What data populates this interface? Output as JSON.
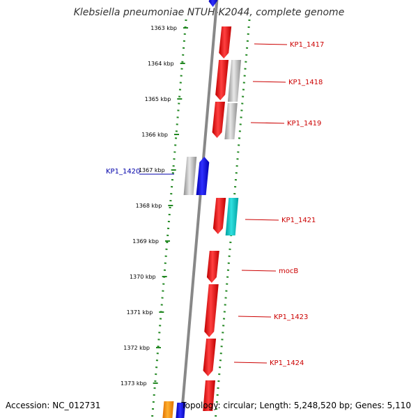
{
  "title": "Klebsiella pneumoniae NTUH-K2044, complete genome",
  "footer": {
    "accession": "Accession: NC_012731",
    "topology": "Topology: circular; Length: 5,248,520 bp; Genes: 5,110"
  },
  "colors": {
    "forward_gene": "#ff0000",
    "reverse_gene": "#0000ff",
    "other_feature": "#c0c0c0",
    "teal_feature": "#00cccc",
    "orange_feature": "#ff9900",
    "ruler_dots": "#228822",
    "backbone": "#888888"
  },
  "ruler": {
    "ticks": [
      "1363 kbp",
      "1364 kbp",
      "1365 kbp",
      "1366 kbp",
      "1367 kbp",
      "1368 kbp",
      "1369 kbp",
      "1370 kbp",
      "1371 kbp",
      "1372 kbp",
      "1373 kbp"
    ]
  },
  "genes": [
    {
      "label": "KP1_1417",
      "color": "red"
    },
    {
      "label": "KP1_1418",
      "color": "red"
    },
    {
      "label": "KP1_1419",
      "color": "red"
    },
    {
      "label": "KP1_1420",
      "color": "blue"
    },
    {
      "label": "KP1_1421",
      "color": "red"
    },
    {
      "label": "mocB",
      "color": "red"
    },
    {
      "label": "KP1_1423",
      "color": "red"
    },
    {
      "label": "KP1_1424",
      "color": "red"
    }
  ]
}
